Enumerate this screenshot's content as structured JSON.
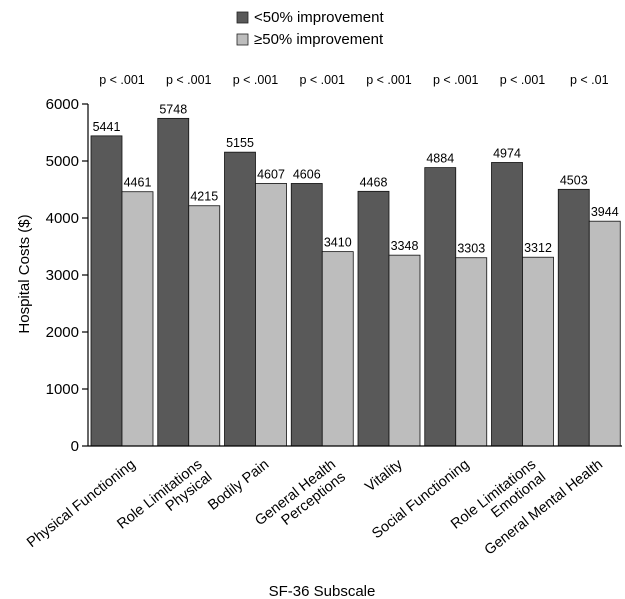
{
  "chart_data": {
    "type": "bar",
    "categories": [
      [
        "Physical Functioning"
      ],
      [
        "Role Limitations",
        "Physical"
      ],
      [
        "Bodily Pain"
      ],
      [
        "General Health",
        "Perceptions"
      ],
      [
        "Vitality"
      ],
      [
        "Social Functioning"
      ],
      [
        "Role Limitations",
        "Emotional"
      ],
      [
        "General Mental Health"
      ]
    ],
    "series": [
      {
        "name": "<50% improvement",
        "color": "#595959",
        "values": [
          5441,
          5748,
          5155,
          4606,
          4468,
          4884,
          4974,
          4503
        ]
      },
      {
        "name": "≥50% improvement",
        "color": "#bdbdbd",
        "values": [
          4461,
          4215,
          4607,
          3410,
          3348,
          3303,
          3312,
          3944
        ]
      }
    ],
    "p_values": [
      "p < .001",
      "p < .001",
      "p < .001",
      "p < .001",
      "p < .001",
      "p < .001",
      "p < .001",
      "p < .01"
    ],
    "xlabel": "SF-36 Subscale",
    "ylabel": "Hospital Costs ($)",
    "ylim": [
      0,
      6000
    ],
    "yticks": [
      0,
      1000,
      2000,
      3000,
      4000,
      5000,
      6000
    ],
    "legend_position": "top-center",
    "grid": false
  }
}
